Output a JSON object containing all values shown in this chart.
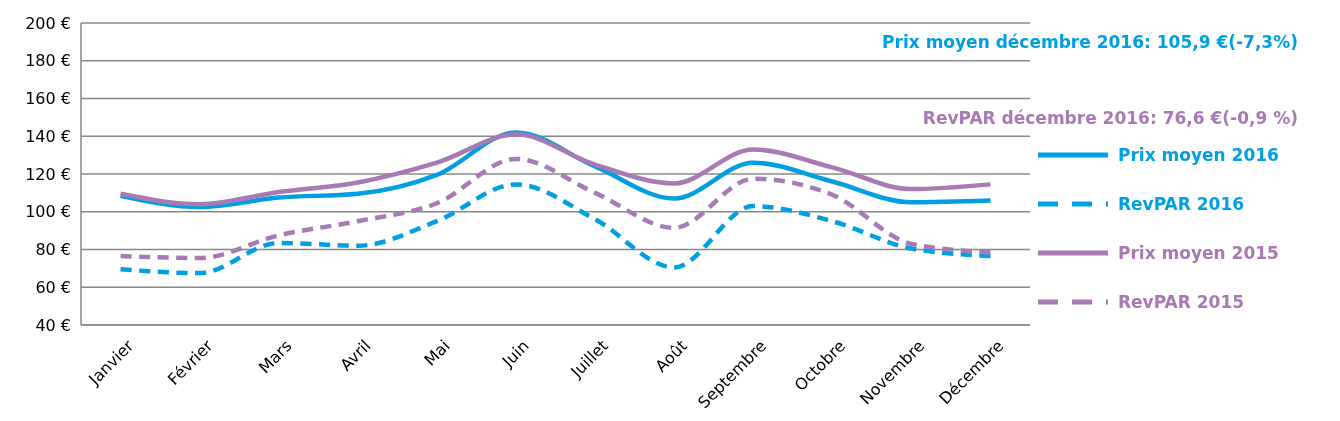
{
  "chart_data": {
    "type": "line",
    "categories": [
      "Janvier",
      "Février",
      "Mars",
      "Avril",
      "Mai",
      "Juin",
      "Juillet",
      "Août",
      "Septembre",
      "Octobre",
      "Novembre",
      "Décembre"
    ],
    "series": [
      {
        "name": "Prix moyen 2016",
        "color": "#009fe3",
        "line_style": "solid",
        "values": [
          108.5,
          102.5,
          107.5,
          109.5,
          119.5,
          142,
          124,
          107,
          126,
          116,
          105,
          105.9
        ]
      },
      {
        "name": "RevPAR 2016",
        "color": "#009fe3",
        "line_style": "dashed",
        "values": [
          69.5,
          67.5,
          83.5,
          82,
          95,
          114.5,
          96,
          70.5,
          103,
          95,
          80.5,
          76.6
        ]
      },
      {
        "name": "Prix moyen 2015",
        "color": "#a77ab4",
        "line_style": "solid",
        "values": [
          109.5,
          104,
          110.5,
          115.5,
          126,
          141,
          125,
          115,
          133,
          123.5,
          112,
          114.5
        ]
      },
      {
        "name": "RevPAR 2015",
        "color": "#a77ab4",
        "line_style": "dashed",
        "values": [
          76.5,
          75.5,
          87.5,
          95,
          104.5,
          128,
          110,
          91.5,
          117.5,
          109,
          83,
          78.5
        ]
      }
    ],
    "ylim": [
      40,
      200
    ],
    "yticks": [
      {
        "value": 40,
        "label": "40 €"
      },
      {
        "value": 60,
        "label": "60 €"
      },
      {
        "value": 80,
        "label": "80 €"
      },
      {
        "value": 100,
        "label": "100 €"
      },
      {
        "value": 120,
        "label": "120 €"
      },
      {
        "value": 140,
        "label": "140 €"
      },
      {
        "value": 160,
        "label": "160 €"
      },
      {
        "value": 180,
        "label": "180 €"
      },
      {
        "value": 200,
        "label": "200 €"
      }
    ],
    "grid": "y",
    "legend": "right",
    "marker": "none",
    "annotations": [
      "Prix moyen décembre 2016: 105,9 €(-7,3%)",
      "RevPAR décembre 2016: 76,6 €(-0,9 %)"
    ]
  }
}
